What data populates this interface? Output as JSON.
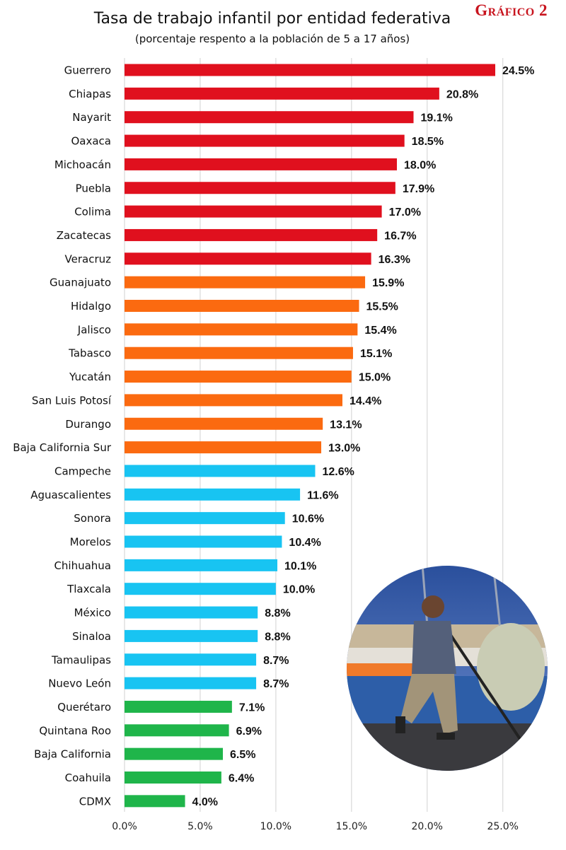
{
  "badge": "Gráfico 2",
  "chart_data": {
    "type": "bar",
    "orientation": "horizontal",
    "title": "Tasa de trabajo infantil por entidad federativa",
    "subtitle": "(porcentaje respento a la población de 5 a 17 años)",
    "xlim": [
      0,
      25
    ],
    "xticks": [
      "0.0%",
      "5.0%",
      "10.0%",
      "15.0%",
      "20.0%",
      "25.0%"
    ],
    "xtick_values": [
      0,
      5,
      10,
      15,
      20,
      25
    ],
    "grid": "vertical",
    "data_labels": true,
    "colors": {
      "red": "#e0101e",
      "orange": "#fb6a10",
      "blue": "#18c4f2",
      "green": "#1fb54a"
    },
    "categories": [
      "Guerrero",
      "Chiapas",
      "Nayarit",
      "Oaxaca",
      "Michoacán",
      "Puebla",
      "Colima",
      "Zacatecas",
      "Veracruz",
      "Guanajuato",
      "Hidalgo",
      "Jalisco",
      "Tabasco",
      "Yucatán",
      "San Luis Potosí",
      "Durango",
      "Baja California Sur",
      "Campeche",
      "Aguascalientes",
      "Sonora",
      "Morelos",
      "Chihuahua",
      "Tlaxcala",
      "México",
      "Sinaloa",
      "Tamaulipas",
      "Nuevo León",
      "Querétaro",
      "Quintana Roo",
      "Baja California",
      "Coahuila",
      "CDMX"
    ],
    "values": [
      24.5,
      20.8,
      19.1,
      18.5,
      18.0,
      17.9,
      17.0,
      16.7,
      16.3,
      15.9,
      15.5,
      15.4,
      15.1,
      15.0,
      14.4,
      13.1,
      13.0,
      12.6,
      11.6,
      10.6,
      10.4,
      10.1,
      10.0,
      8.8,
      8.8,
      8.7,
      8.7,
      7.1,
      6.9,
      6.5,
      6.4,
      4.0
    ],
    "labels": [
      "24.5%",
      "20.8%",
      "19.1%",
      "18.5%",
      "18.0%",
      "17.9%",
      "17.0%",
      "16.7%",
      "16.3%",
      "15.9%",
      "15.5%",
      "15.4%",
      "15.1%",
      "15.0%",
      "14.4%",
      "13.1%",
      "13.0%",
      "12.6%",
      "11.6%",
      "10.6%",
      "10.4%",
      "10.1%",
      "10.0%",
      "8.8%",
      "8.8%",
      "8.7%",
      "8.7%",
      "7.1%",
      "6.9%",
      "6.5%",
      "6.4%",
      "4.0%"
    ],
    "bar_colors": [
      "red",
      "red",
      "red",
      "red",
      "red",
      "red",
      "red",
      "red",
      "red",
      "orange",
      "orange",
      "orange",
      "orange",
      "orange",
      "orange",
      "orange",
      "orange",
      "blue",
      "blue",
      "blue",
      "blue",
      "blue",
      "blue",
      "blue",
      "blue",
      "blue",
      "blue",
      "green",
      "green",
      "green",
      "green",
      "green"
    ]
  }
}
